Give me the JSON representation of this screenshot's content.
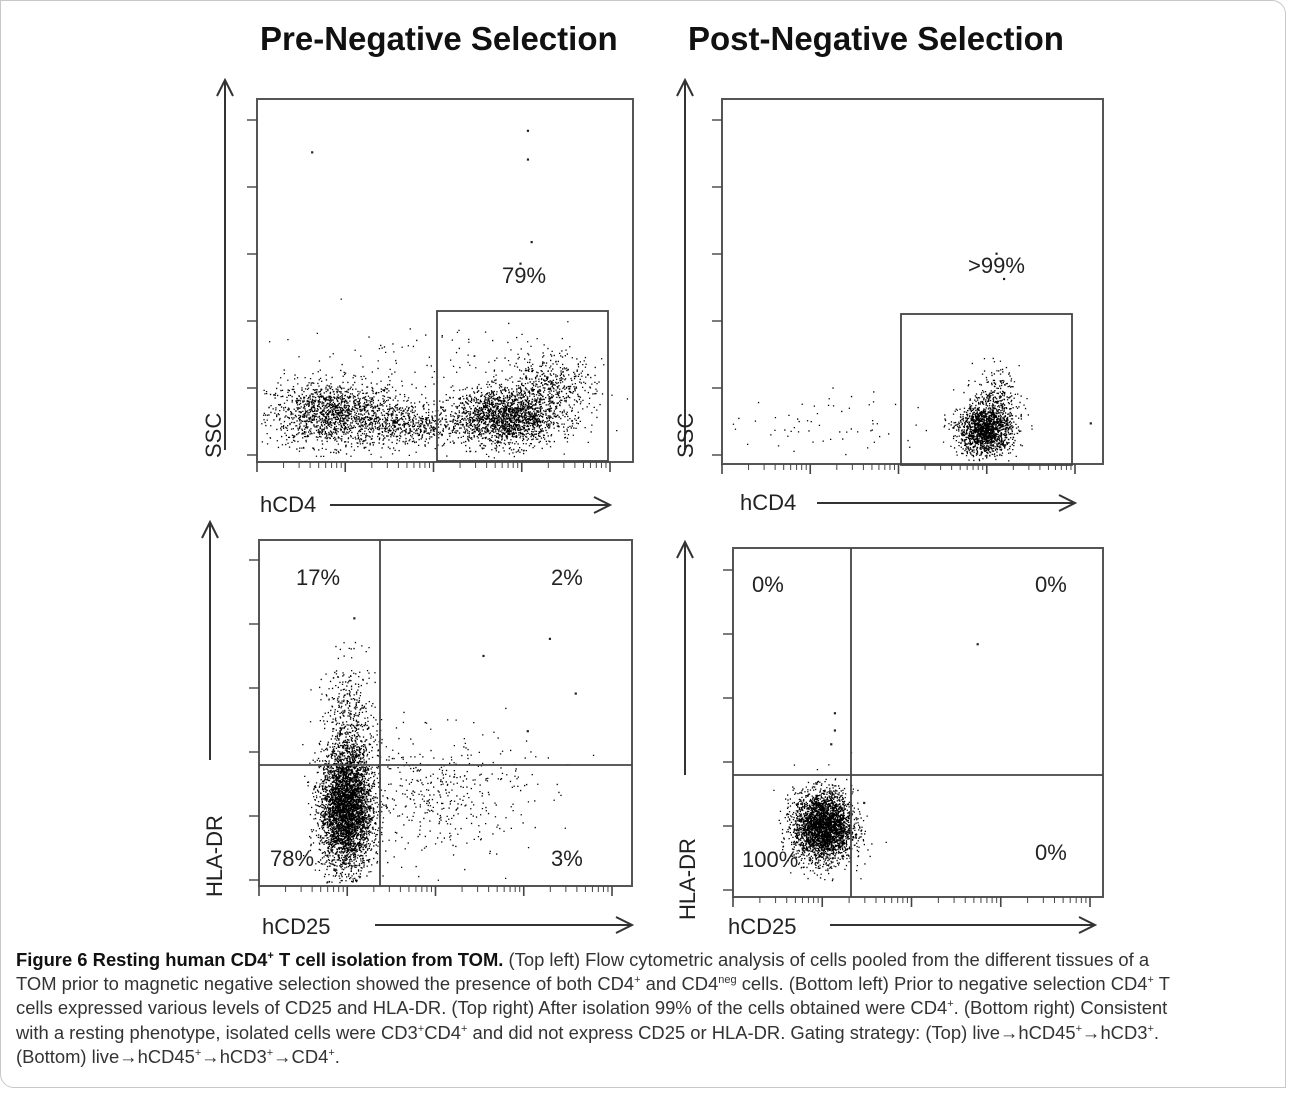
{
  "titles": {
    "left": "Pre-Negative Selection",
    "right": "Post-Negative Selection"
  },
  "axis": {
    "x_top": "hCD4",
    "y_top": "SSC",
    "x_bottom": "hCD25",
    "y_bottom": "HLA-DR"
  },
  "colors": {
    "axis": "#444444",
    "dots": "#000000",
    "gate": "#555555",
    "border": "#c8c8c8"
  },
  "chart_data": [
    {
      "type": "scatter",
      "panel": "top-left",
      "xlabel": "hCD4",
      "ylabel": "SSC",
      "gate_percent": "79%",
      "gate_x_range": [
        0.52,
        1.0
      ],
      "gate_y_range": [
        0.0,
        0.42
      ],
      "populations": [
        {
          "name": "CD4neg",
          "x": 0.2,
          "y": 0.13,
          "sx": 0.09,
          "sy": 0.045,
          "n": 1500
        },
        {
          "name": "bridge",
          "x": 0.4,
          "y": 0.1,
          "sx": 0.07,
          "sy": 0.03,
          "n": 500
        },
        {
          "name": "CD4pos",
          "x": 0.66,
          "y": 0.12,
          "sx": 0.07,
          "sy": 0.04,
          "n": 1800
        },
        {
          "name": "CD4pos-tail",
          "x": 0.78,
          "y": 0.2,
          "sx": 0.06,
          "sy": 0.05,
          "n": 500
        },
        {
          "name": "sparse",
          "x": 0.5,
          "y": 0.28,
          "sx": 0.25,
          "sy": 0.06,
          "n": 120
        }
      ],
      "outliers": [
        [
          0.14,
          0.86
        ],
        [
          0.72,
          0.92
        ],
        [
          0.72,
          0.84
        ],
        [
          0.73,
          0.61
        ],
        [
          0.7,
          0.55
        ]
      ]
    },
    {
      "type": "scatter",
      "panel": "top-right",
      "xlabel": "hCD4",
      "ylabel": "SSC",
      "gate_percent": ">99%",
      "gate_x_range": [
        0.5,
        0.95
      ],
      "gate_y_range": [
        0.0,
        0.42
      ],
      "populations": [
        {
          "name": "CD4pos",
          "x": 0.69,
          "y": 0.09,
          "sx": 0.035,
          "sy": 0.035,
          "n": 1500
        },
        {
          "name": "CD4pos-tail",
          "x": 0.72,
          "y": 0.16,
          "sx": 0.03,
          "sy": 0.05,
          "n": 300
        },
        {
          "name": "scatter-left",
          "x": 0.3,
          "y": 0.11,
          "sx": 0.12,
          "sy": 0.05,
          "n": 60
        }
      ],
      "outliers": [
        [
          0.72,
          0.58
        ],
        [
          0.74,
          0.51
        ],
        [
          0.97,
          0.11
        ]
      ]
    },
    {
      "type": "scatter",
      "panel": "bottom-left",
      "xlabel": "hCD25",
      "ylabel": "HLA-DR",
      "quadrant_x": 0.32,
      "quadrant_y": 0.36,
      "quadrants": {
        "top_left": "17%",
        "top_right": "2%",
        "bottom_left": "78%",
        "bottom_right": "3%"
      },
      "populations": [
        {
          "name": "main",
          "x": 0.23,
          "y": 0.22,
          "sx": 0.035,
          "sy": 0.09,
          "n": 3800
        },
        {
          "name": "hladr-up",
          "x": 0.24,
          "y": 0.45,
          "sx": 0.035,
          "sy": 0.1,
          "n": 500
        },
        {
          "name": "cd25-pos",
          "x": 0.47,
          "y": 0.27,
          "sx": 0.13,
          "sy": 0.09,
          "n": 450
        }
      ],
      "outliers": [
        [
          0.25,
          0.78
        ],
        [
          0.78,
          0.72
        ],
        [
          0.85,
          0.56
        ],
        [
          0.72,
          0.45
        ],
        [
          0.6,
          0.67
        ]
      ]
    },
    {
      "type": "scatter",
      "panel": "bottom-right",
      "xlabel": "hCD25",
      "ylabel": "HLA-DR",
      "quadrant_x": 0.32,
      "quadrant_y": 0.36,
      "quadrants": {
        "top_left": "0%",
        "top_right": "0%",
        "bottom_left": "100%",
        "bottom_right": "0%"
      },
      "populations": [
        {
          "name": "main",
          "x": 0.24,
          "y": 0.2,
          "sx": 0.04,
          "sy": 0.05,
          "n": 3000
        }
      ],
      "outliers": [
        [
          0.26,
          0.44
        ],
        [
          0.27,
          0.48
        ],
        [
          0.27,
          0.53
        ],
        [
          0.66,
          0.73
        ],
        [
          0.35,
          0.27
        ]
      ]
    }
  ],
  "caption": {
    "label": "Figure 6",
    "title_a": "Resting human CD4",
    "title_sup": "+",
    "title_b": " T cell isolation from TOM.",
    "l1_a": " (Top left) Flow cytometric analysis of cells pooled from the different tissues of a",
    "l2_a": "TOM prior to magnetic negative selection showed the presence of both CD4",
    "l2_sup1": "+",
    "l2_b": " and CD4",
    "l2_sup2": "neg",
    "l2_c": " cells. (Bottom left) Prior to negative selection CD4",
    "l2_sup3": "+",
    "l2_d": " T",
    "l3_a": "cells expressed various levels of CD25 and HLA-DR. (Top right) After isolation 99% of the cells obtained were CD4",
    "l3_sup1": "+",
    "l3_b": ". (Bottom right) Consistent",
    "l4_a": "with a resting phenotype, isolated cells were CD3",
    "l4_sup1": "+",
    "l4_b": "CD4",
    "l4_sup2": "+",
    "l4_c": " and did not express CD25 or HLA-DR. Gating strategy: (Top) live→hCD45",
    "l4_sup3": "+",
    "l4_d": "→hCD3",
    "l4_sup4": "+",
    "l4_e": ".",
    "l5_a": "(Bottom) live→hCD45",
    "l5_sup1": "+",
    "l5_b": "→hCD3",
    "l5_sup2": "+",
    "l5_c": "→CD4",
    "l5_sup3": "+",
    "l5_d": "."
  }
}
